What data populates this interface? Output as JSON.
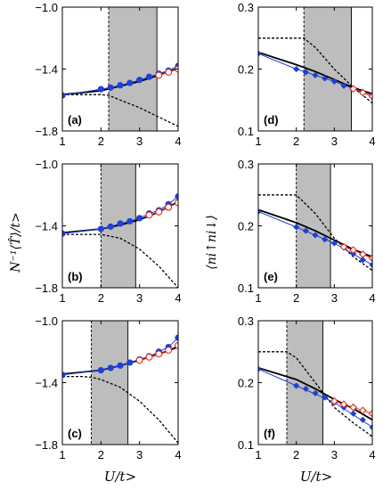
{
  "colors": {
    "blue": "#1f3fd6",
    "red": "#d92b1a",
    "black": "#000000",
    "shade": "#bdbdbd"
  },
  "axis_titles": {
    "left_ylabel": "N⁻¹⟨T̂⟩/t>",
    "right_ylabel": "⟨ni↑ni↓⟩",
    "left_xlabel": "U/t>",
    "right_xlabel": "U/t>"
  },
  "chart_data": [
    {
      "type": "line",
      "panel_label": "(a)",
      "xlim": [
        1,
        4
      ],
      "ylim": [
        -1.8,
        -1.0
      ],
      "xticks": [
        "1",
        "2",
        "3",
        "4"
      ],
      "yticks": [
        "-1.0",
        "-1.4",
        "-1.8"
      ],
      "ytick_values": [
        -1.0,
        -1.4,
        -1.8
      ],
      "shaded_region": [
        2.2,
        3.45
      ],
      "series": [
        {
          "kind": "dots",
          "color": "blue",
          "x": [
            1,
            2,
            2.25,
            2.5,
            2.75,
            3,
            3.25,
            3.5,
            3.75,
            4
          ],
          "y": [
            -1.57,
            -1.53,
            -1.52,
            -1.505,
            -1.49,
            -1.47,
            -1.45,
            -1.43,
            -1.41,
            -1.38
          ]
        },
        {
          "kind": "open-circles",
          "color": "red",
          "x": [
            3.5,
            3.75,
            4
          ],
          "y": [
            -1.44,
            -1.42,
            -1.4
          ]
        },
        {
          "kind": "solid",
          "color": "black",
          "x": [
            1,
            2,
            2.5,
            3,
            3.5,
            4
          ],
          "y": [
            -1.565,
            -1.54,
            -1.51,
            -1.48,
            -1.44,
            -1.395
          ]
        },
        {
          "kind": "dashed",
          "color": "black",
          "x": [
            1,
            1.5,
            2,
            2.2,
            2.5,
            3,
            3.5,
            4
          ],
          "y": [
            -1.565,
            -1.565,
            -1.565,
            -1.57,
            -1.6,
            -1.65,
            -1.71,
            -1.77
          ]
        }
      ]
    },
    {
      "type": "line",
      "panel_label": "(b)",
      "xlim": [
        1,
        4
      ],
      "ylim": [
        -1.8,
        -1.0
      ],
      "xticks": [
        "1",
        "2",
        "3",
        "4"
      ],
      "yticks": [
        "-1.0",
        "-1.4",
        "-1.8"
      ],
      "ytick_values": [
        -1.0,
        -1.4,
        -1.8
      ],
      "shaded_region": [
        2.0,
        2.9
      ],
      "series": [
        {
          "kind": "dots",
          "color": "blue",
          "x": [
            1,
            2,
            2.25,
            2.5,
            2.75,
            3,
            3.25,
            3.5,
            3.75,
            4
          ],
          "y": [
            -1.45,
            -1.42,
            -1.405,
            -1.385,
            -1.37,
            -1.35,
            -1.32,
            -1.3,
            -1.26,
            -1.21
          ]
        },
        {
          "kind": "open-circles",
          "color": "red",
          "x": [
            3.25,
            3.5,
            3.75,
            4
          ],
          "y": [
            -1.33,
            -1.31,
            -1.28,
            -1.25
          ]
        },
        {
          "kind": "solid",
          "color": "black",
          "x": [
            1,
            2,
            2.5,
            3,
            3.5,
            4
          ],
          "y": [
            -1.445,
            -1.42,
            -1.395,
            -1.36,
            -1.31,
            -1.245
          ]
        },
        {
          "kind": "dashed",
          "color": "black",
          "x": [
            1,
            1.5,
            2,
            2.5,
            3,
            3.5,
            4
          ],
          "y": [
            -1.455,
            -1.455,
            -1.455,
            -1.48,
            -1.55,
            -1.66,
            -1.8
          ]
        }
      ]
    },
    {
      "type": "line",
      "panel_label": "(c)",
      "xlim": [
        1,
        4
      ],
      "ylim": [
        -1.8,
        -1.0
      ],
      "xticks": [
        "1",
        "2",
        "3",
        "4"
      ],
      "yticks": [
        "-1.0",
        "-1.4",
        "-1.8"
      ],
      "ytick_values": [
        -1.0,
        -1.4,
        -1.8
      ],
      "shaded_region": [
        1.75,
        2.7
      ],
      "series": [
        {
          "kind": "dots",
          "color": "blue",
          "x": [
            1,
            2,
            2.25,
            2.5,
            2.75,
            3,
            3.25,
            3.5,
            3.75,
            4
          ],
          "y": [
            -1.35,
            -1.32,
            -1.305,
            -1.29,
            -1.27,
            -1.25,
            -1.23,
            -1.2,
            -1.17,
            -1.11
          ]
        },
        {
          "kind": "open-circles",
          "color": "red",
          "x": [
            3,
            3.25,
            3.5,
            3.75,
            4
          ],
          "y": [
            -1.255,
            -1.235,
            -1.215,
            -1.19,
            -1.16
          ]
        },
        {
          "kind": "solid",
          "color": "black",
          "x": [
            1,
            2,
            2.5,
            3,
            3.5,
            4
          ],
          "y": [
            -1.345,
            -1.32,
            -1.29,
            -1.255,
            -1.215,
            -1.17
          ]
        },
        {
          "kind": "dashed",
          "color": "black",
          "x": [
            1,
            1.5,
            1.75,
            2,
            2.5,
            3,
            3.5,
            4
          ],
          "y": [
            -1.36,
            -1.36,
            -1.365,
            -1.38,
            -1.43,
            -1.52,
            -1.64,
            -1.79
          ]
        }
      ]
    },
    {
      "type": "line",
      "panel_label": "(d)",
      "xlim": [
        1,
        4
      ],
      "ylim": [
        0.1,
        0.3
      ],
      "xticks": [
        "1",
        "2",
        "3",
        "4"
      ],
      "yticks": [
        "0.3",
        "0.2",
        "0.1"
      ],
      "ytick_values": [
        0.3,
        0.2,
        0.1
      ],
      "shaded_region": [
        2.2,
        3.45
      ],
      "series": [
        {
          "kind": "dots",
          "color": "blue",
          "x": [
            1,
            2,
            2.25,
            2.5,
            2.75,
            3,
            3.25,
            3.5,
            3.75,
            4
          ],
          "y": [
            0.225,
            0.2,
            0.195,
            0.19,
            0.185,
            0.18,
            0.173,
            0.168,
            0.163,
            0.157
          ]
        },
        {
          "kind": "solid-thin",
          "color": "blue",
          "x": [
            1,
            2,
            3,
            4
          ],
          "y": [
            0.225,
            0.2,
            0.18,
            0.157
          ]
        },
        {
          "kind": "open-diamonds",
          "color": "red",
          "x": [
            3.5,
            3.75,
            4
          ],
          "y": [
            0.168,
            0.162,
            0.156
          ]
        },
        {
          "kind": "solid",
          "color": "black",
          "x": [
            1,
            2,
            2.5,
            3,
            3.5,
            4
          ],
          "y": [
            0.227,
            0.207,
            0.196,
            0.183,
            0.17,
            0.16
          ]
        },
        {
          "kind": "dashed",
          "color": "black",
          "x": [
            1,
            2,
            2.2,
            2.5,
            3,
            3.5,
            4
          ],
          "y": [
            0.25,
            0.25,
            0.25,
            0.235,
            0.2,
            0.17,
            0.145
          ]
        }
      ]
    },
    {
      "type": "line",
      "panel_label": "(e)",
      "xlim": [
        1,
        4
      ],
      "ylim": [
        0.1,
        0.3
      ],
      "xticks": [
        "1",
        "2",
        "3",
        "4"
      ],
      "yticks": [
        "0.3",
        "0.2",
        "0.1"
      ],
      "ytick_values": [
        0.3,
        0.2,
        0.1
      ],
      "shaded_region": [
        2.0,
        2.9
      ],
      "series": [
        {
          "kind": "dots",
          "color": "blue",
          "x": [
            1,
            2,
            2.25,
            2.5,
            2.75,
            3,
            3.25,
            3.5,
            3.75,
            4
          ],
          "y": [
            0.223,
            0.198,
            0.192,
            0.185,
            0.178,
            0.172,
            0.165,
            0.155,
            0.145,
            0.137
          ]
        },
        {
          "kind": "solid-thin",
          "color": "blue",
          "x": [
            1,
            2,
            3,
            4
          ],
          "y": [
            0.223,
            0.198,
            0.172,
            0.137
          ]
        },
        {
          "kind": "open-diamonds",
          "color": "red",
          "x": [
            3.25,
            3.5,
            3.75,
            4
          ],
          "y": [
            0.166,
            0.161,
            0.154,
            0.148
          ]
        },
        {
          "kind": "solid",
          "color": "black",
          "x": [
            1,
            2,
            2.5,
            3,
            3.5,
            4
          ],
          "y": [
            0.226,
            0.205,
            0.192,
            0.177,
            0.162,
            0.15
          ]
        },
        {
          "kind": "dashed",
          "color": "black",
          "x": [
            1,
            2,
            2.5,
            3,
            3.5,
            4
          ],
          "y": [
            0.25,
            0.25,
            0.22,
            0.18,
            0.15,
            0.128
          ]
        }
      ]
    },
    {
      "type": "line",
      "panel_label": "(f)",
      "xlim": [
        1,
        4
      ],
      "ylim": [
        0.1,
        0.3
      ],
      "xticks": [
        "1",
        "2",
        "3",
        "4"
      ],
      "yticks": [
        "0.3",
        "0.2",
        "0.1"
      ],
      "ytick_values": [
        0.3,
        0.2,
        0.1
      ],
      "shaded_region": [
        1.75,
        2.7
      ],
      "series": [
        {
          "kind": "dots",
          "color": "blue",
          "x": [
            1,
            2,
            2.25,
            2.5,
            2.75,
            3,
            3.25,
            3.5,
            3.75,
            4
          ],
          "y": [
            0.222,
            0.195,
            0.19,
            0.183,
            0.176,
            0.168,
            0.16,
            0.15,
            0.14,
            0.128
          ]
        },
        {
          "kind": "solid-thin",
          "color": "blue",
          "x": [
            1,
            2,
            3,
            4
          ],
          "y": [
            0.222,
            0.195,
            0.168,
            0.128
          ]
        },
        {
          "kind": "open-diamonds",
          "color": "red",
          "x": [
            3,
            3.25,
            3.5,
            3.75,
            4
          ],
          "y": [
            0.17,
            0.165,
            0.16,
            0.155,
            0.15
          ]
        },
        {
          "kind": "solid",
          "color": "black",
          "x": [
            1,
            2,
            2.5,
            3,
            3.5,
            4
          ],
          "y": [
            0.224,
            0.205,
            0.19,
            0.173,
            0.158,
            0.14
          ]
        },
        {
          "kind": "dashed",
          "color": "black",
          "x": [
            1,
            1.75,
            2,
            2.5,
            3,
            3.5,
            4
          ],
          "y": [
            0.25,
            0.25,
            0.24,
            0.2,
            0.16,
            0.135,
            0.113
          ]
        }
      ]
    }
  ]
}
